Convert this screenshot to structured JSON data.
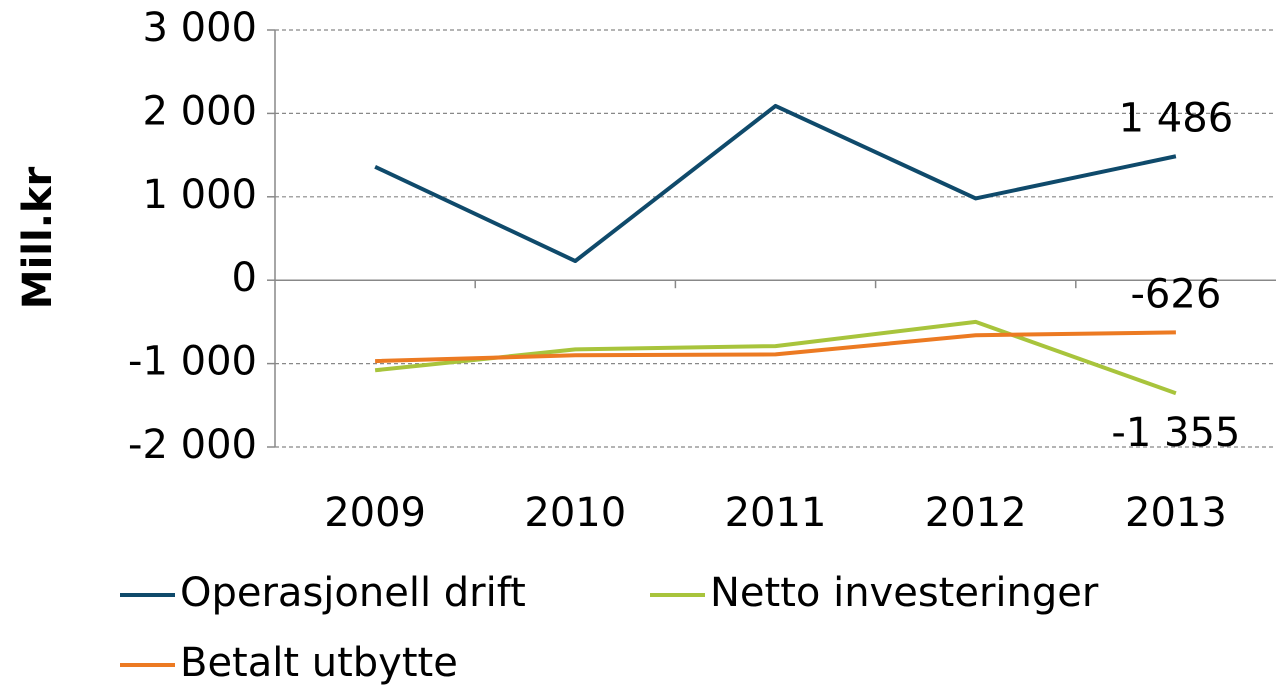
{
  "chart_data": {
    "type": "line",
    "y_label": "Mill.kr",
    "categories": [
      "2009",
      "2010",
      "2011",
      "2012",
      "2013"
    ],
    "series": [
      {
        "name": "Operasjonell drift",
        "color": "#0f4a6b",
        "values": [
          1360,
          230,
          2090,
          980,
          1486
        ],
        "value_labels": [
          null,
          null,
          null,
          null,
          "1 486"
        ]
      },
      {
        "name": "Netto investeringer",
        "color": "#a8c43c",
        "values": [
          -1080,
          -830,
          -790,
          -500,
          -1355
        ],
        "value_labels": [
          null,
          null,
          null,
          null,
          "-1 355"
        ]
      },
      {
        "name": "Betalt utbytte",
        "color": "#ec7a22",
        "values": [
          -970,
          -900,
          -890,
          -660,
          -626
        ],
        "value_labels": [
          null,
          null,
          null,
          null,
          "-626"
        ]
      }
    ],
    "ylim": [
      -2000,
      3000
    ],
    "yticks": [
      {
        "value": -2000,
        "label": "-2 000"
      },
      {
        "value": -1000,
        "label": "-1 000"
      },
      0,
      {
        "value": 1000,
        "label": "1 000"
      },
      {
        "value": 2000,
        "label": "2 000"
      },
      {
        "value": 3000,
        "label": "3 000"
      }
    ],
    "grid": true,
    "legend": "bottom"
  }
}
